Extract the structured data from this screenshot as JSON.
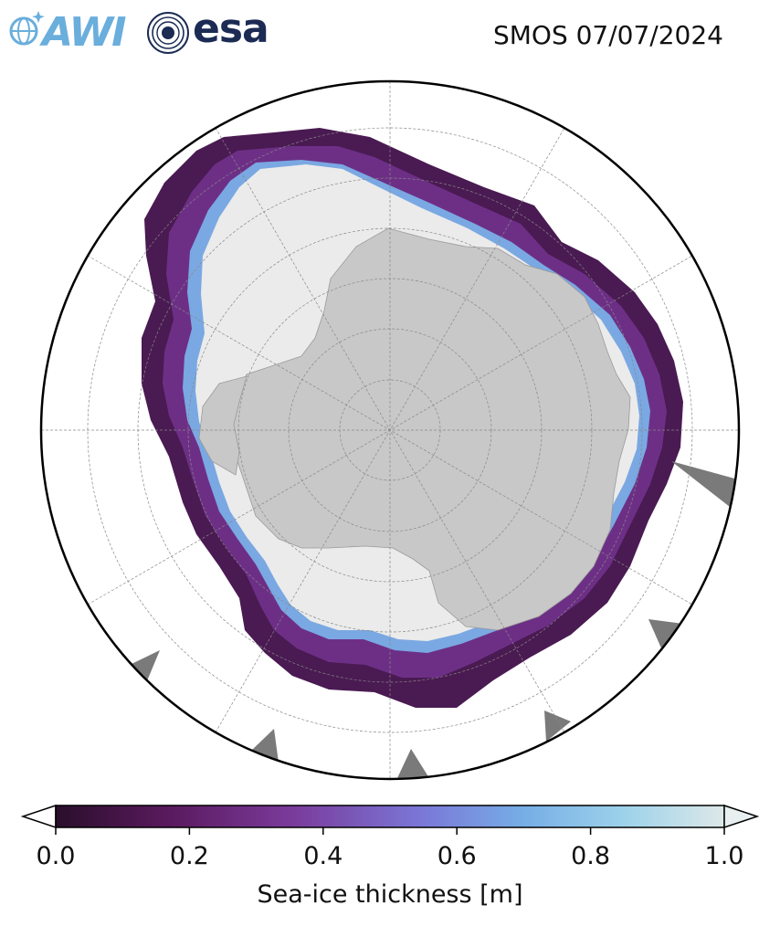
{
  "header": {
    "title": "SMOS 07/07/2024",
    "logo_awi_text": "AWI",
    "logo_esa_text": "esa"
  },
  "colors": {
    "land": "#c8c8c8",
    "thick_ice": "#ebebeb",
    "no_data": "#7a7a7a",
    "grid": "#888888",
    "awi_blue": "#6aaedc",
    "esa_navy": "#1b2b54"
  },
  "colorbar": {
    "label": "Sea-ice thickness [m]",
    "ticks": [
      "0.0",
      "0.2",
      "0.4",
      "0.6",
      "0.8",
      "1.0"
    ],
    "range": [
      0.0,
      1.0
    ],
    "colormap": [
      "#2a0e2b",
      "#5a1a5e",
      "#7a3a9a",
      "#7a78d8",
      "#76aee6",
      "#9dd2ea",
      "#dde8e8"
    ],
    "extend": "both"
  }
}
